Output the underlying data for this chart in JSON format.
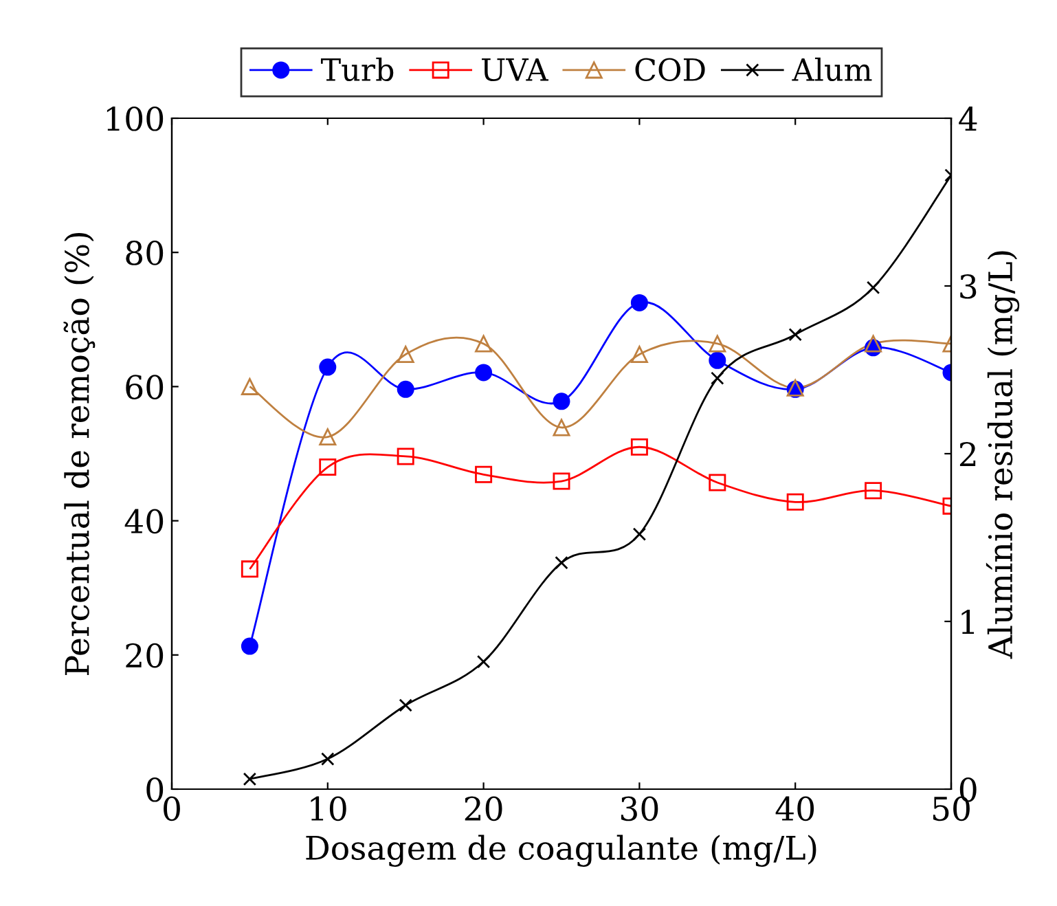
{
  "chart_data": {
    "type": "line",
    "xlabel": "Dosagem de coagulante (mg/L)",
    "ylabel": "Percentual de remoção (%)",
    "y2label": "Alumínio residual (mg/L)",
    "x": [
      5,
      10,
      15,
      20,
      25,
      30,
      35,
      40,
      45,
      50
    ],
    "xlim": [
      0,
      50
    ],
    "xticks": [
      0,
      10,
      20,
      30,
      40,
      50
    ],
    "ylim": [
      0,
      100
    ],
    "yticks": [
      0,
      20,
      40,
      60,
      80,
      100
    ],
    "y2lim": [
      0,
      4
    ],
    "y2ticks": [
      0,
      1,
      2,
      3,
      4
    ],
    "grid": false,
    "legend": "top",
    "line_style": "solid",
    "series": [
      {
        "name": "Turb",
        "color": "#0000ff",
        "marker": "circle",
        "values": [
          21.3,
          62.9,
          59.6,
          62.1,
          57.8,
          72.5,
          63.9,
          59.6,
          65.8,
          62.1
        ]
      },
      {
        "name": "UVA",
        "color": "#ff0000",
        "marker": "square",
        "values": [
          32.8,
          48.0,
          49.6,
          46.9,
          45.9,
          51.0,
          45.7,
          42.8,
          44.5,
          42.2
        ]
      },
      {
        "name": "COD",
        "color": "#bf8040",
        "marker": "triangle",
        "values": [
          60.0,
          52.5,
          64.8,
          66.4,
          53.9,
          64.8,
          66.4,
          59.8,
          66.4,
          66.4
        ]
      },
      {
        "name": "Alum",
        "color": "#000000",
        "marker": "cross",
        "axis": "y2",
        "values": [
          0.06,
          0.18,
          0.5,
          0.76,
          1.35,
          1.52,
          2.45,
          2.71,
          2.99,
          3.66
        ]
      }
    ]
  }
}
